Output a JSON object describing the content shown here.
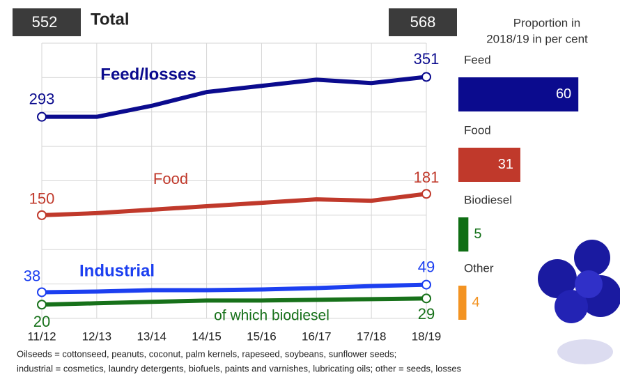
{
  "chart_data": [
    {
      "type": "line",
      "categories": [
        "11/12",
        "12/13",
        "13/14",
        "14/15",
        "15/16",
        "16/17",
        "17/18",
        "18/19"
      ],
      "series": [
        {
          "name": "Feed/losses",
          "color": "#0b0b8e",
          "values": [
            293,
            293,
            309,
            329,
            338,
            347,
            342,
            351
          ]
        },
        {
          "name": "Food",
          "color": "#c0392b",
          "values": [
            150,
            153,
            158,
            163,
            168,
            173,
            171,
            181
          ]
        },
        {
          "name": "Industrial",
          "color": "#1c3ff0",
          "values": [
            38,
            39,
            41,
            41,
            42,
            44,
            47,
            49
          ]
        },
        {
          "name": "of which biodiesel",
          "color": "#17711a",
          "values": [
            20,
            22,
            24,
            26,
            26,
            27,
            28,
            29
          ]
        }
      ],
      "ylim": [
        0,
        400
      ],
      "yticks": [
        0,
        50,
        100,
        150,
        200,
        250,
        300,
        350,
        400
      ],
      "grid": true,
      "total_label": "Total",
      "totals": [
        552,
        568
      ],
      "footnote": [
        "Oilseeds = cottonseed, peanuts, coconut, palm kernels, rapeseed, soybeans, sunflower seeds;",
        "industrial = cosmetics, laundry detergents, biofuels, paints and varnishes, lubricating oils; other = seeds, losses"
      ]
    },
    {
      "type": "hbar",
      "title": "Proportion in 2018/19 in per cent",
      "categories": [
        "Feed",
        "Food",
        "Biodiesel",
        "Other"
      ],
      "values": [
        60,
        31,
        5,
        4
      ],
      "colors": [
        "#0b0b8e",
        "#c0392b",
        "#0f6e14",
        "#f39322"
      ]
    }
  ]
}
